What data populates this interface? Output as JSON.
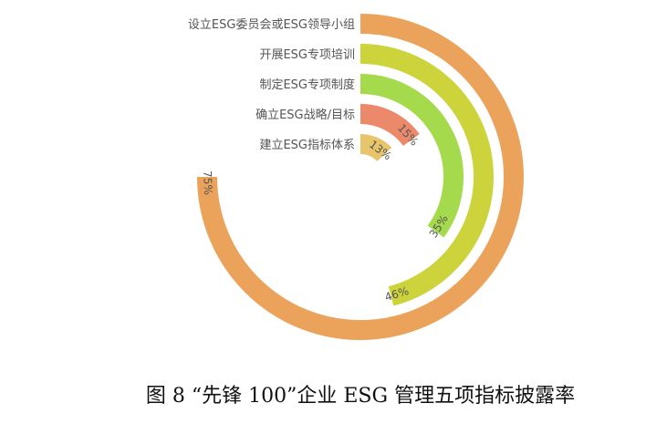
{
  "caption": "图 8 “先锋 100”企业 ESG 管理五项指标披露率",
  "chart_data": {
    "type": "radial-bar",
    "title": "图 8 “先锋 100”企业 ESG 管理五项指标披露率",
    "unit": "%",
    "max": 100,
    "start": "top",
    "direction": "clockwise",
    "categories": [
      "设立ESG委员会或ESG领导小组",
      "开展ESG专项培训",
      "制定ESG专项制度",
      "确立ESG战略/目标",
      "建立ESG指标体系"
    ],
    "values": [
      75,
      46,
      35,
      15,
      13
    ],
    "value_labels": [
      "75%",
      "46%",
      "35%",
      "15%",
      "13%"
    ],
    "colors": [
      "#eba25b",
      "#cdd33a",
      "#a6da4d",
      "#ec896a",
      "#e8c46a"
    ]
  }
}
